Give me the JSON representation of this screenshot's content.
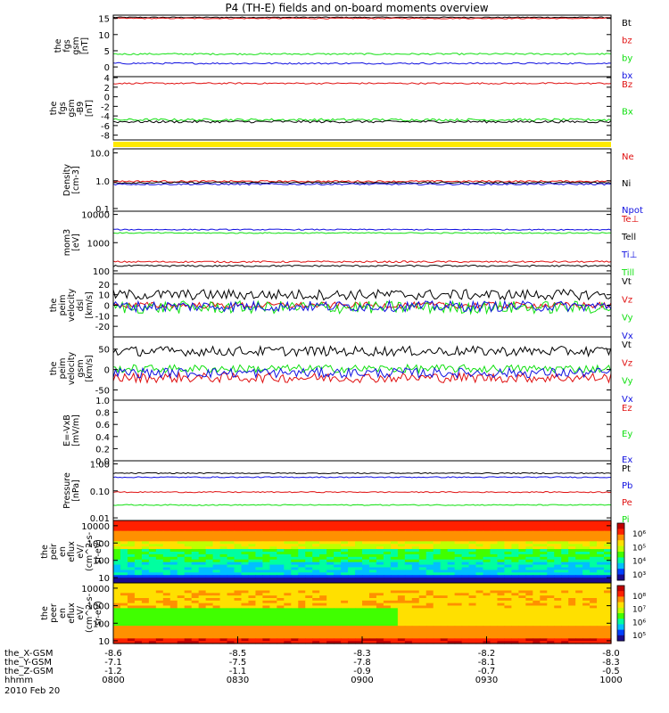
{
  "title": "P4 (TH-E) fields and on-board moments overview",
  "colors": {
    "black": "#000000",
    "red": "#e01010",
    "green": "#10e010",
    "blue": "#1010e0",
    "yellow": "#ffea00"
  },
  "chart_data": [
    {
      "type": "line",
      "ylabel": [
        "the",
        "fgs",
        "gsm",
        "[nT]"
      ],
      "yticks": [
        "15",
        "10",
        "5",
        "0"
      ],
      "ylim": [
        -3,
        16
      ],
      "log": false,
      "series": [
        {
          "name": "Bt",
          "color": "black",
          "base": 15.3,
          "noise": 0.15
        },
        {
          "name": "bz",
          "color": "red",
          "base": 15.0,
          "noise": 0.15
        },
        {
          "name": "by",
          "color": "green",
          "base": 4.0,
          "noise": 0.25
        },
        {
          "name": "bx",
          "color": "blue",
          "base": 1.1,
          "noise": 0.25
        }
      ]
    },
    {
      "type": "line",
      "ylabel": [
        "the",
        "fgs",
        "gsm",
        "-B9",
        "[nT]"
      ],
      "yticks": [
        "4",
        "2",
        "0",
        "-2",
        "-4",
        "-6",
        "-8"
      ],
      "ylim": [
        -9,
        4.2
      ],
      "log": false,
      "series": [
        {
          "name": "Bz",
          "color": "red",
          "base": 2.8,
          "noise": 0.15
        },
        {
          "name": "Bx",
          "color": "green",
          "base": -4.8,
          "noise": 0.25
        },
        {
          "name": "",
          "color": "black",
          "base": -5.2,
          "noise": 0.25
        }
      ]
    },
    {
      "type": "line",
      "ylabel": [
        "Density",
        "[cm-3]"
      ],
      "yticks": [
        "10.0",
        "1.0",
        "0.1"
      ],
      "ylim": [
        0.08,
        14
      ],
      "log": true,
      "series": [
        {
          "name": "Ne",
          "color": "red",
          "base": 0.95,
          "noise": 0.03
        },
        {
          "name": "Ni",
          "color": "black",
          "base": 0.85,
          "noise": 0.03
        },
        {
          "name": "Npot",
          "color": "blue",
          "base": 0.75,
          "noise": 0.03
        }
      ]
    },
    {
      "type": "line",
      "ylabel": [
        "mom3",
        "[eV]"
      ],
      "yticks": [
        "10000",
        "1000",
        "100"
      ],
      "ylim": [
        80,
        13000
      ],
      "log": true,
      "series": [
        {
          "name": "Te⊥",
          "color": "red",
          "base": 210,
          "noise": 0.03
        },
        {
          "name": "Tell",
          "color": "black",
          "base": 150,
          "noise": 0.03
        },
        {
          "name": "Ti⊥",
          "color": "blue",
          "base": 2900,
          "noise": 0.02
        },
        {
          "name": "Till",
          "color": "green",
          "base": 2200,
          "noise": 0.02
        }
      ]
    },
    {
      "type": "line",
      "ylabel": [
        "the",
        "peim",
        "velocity",
        "dsl",
        "[km/s]"
      ],
      "yticks": [
        "20",
        "10",
        "0",
        "-10",
        "-20"
      ],
      "ylim": [
        -30,
        30
      ],
      "log": false,
      "series": [
        {
          "name": "Vt",
          "color": "black",
          "base": 10,
          "noise": 5
        },
        {
          "name": "Vz",
          "color": "red",
          "base": 0,
          "noise": 3
        },
        {
          "name": "Vy",
          "color": "green",
          "base": -2,
          "noise": 6
        },
        {
          "name": "Vx",
          "color": "blue",
          "base": -1,
          "noise": 5
        }
      ]
    },
    {
      "type": "line",
      "ylabel": [
        "the",
        "peim",
        "velocity",
        "gsm",
        "[km/s]"
      ],
      "yticks": [
        "50",
        "0",
        "-50"
      ],
      "ylim": [
        -75,
        80
      ],
      "log": false,
      "series": [
        {
          "name": "Vt",
          "color": "black",
          "base": 45,
          "noise": 12
        },
        {
          "name": "Vz",
          "color": "red",
          "base": -20,
          "noise": 12
        },
        {
          "name": "Vy",
          "color": "green",
          "base": 2,
          "noise": 10
        },
        {
          "name": "Vx",
          "color": "blue",
          "base": -8,
          "noise": 12
        }
      ]
    },
    {
      "type": "line",
      "ylabel": [
        "E=-VxB",
        "[mV/m]"
      ],
      "yticks": [
        "1.0",
        "0.8",
        "0.6",
        "0.4",
        "0.2",
        "0.0"
      ],
      "ylim": [
        0,
        1
      ],
      "log": false,
      "series": [
        {
          "name": "Ez",
          "color": "red",
          "base": null,
          "noise": 0
        },
        {
          "name": "Ey",
          "color": "green",
          "base": null,
          "noise": 0
        },
        {
          "name": "Ex",
          "color": "blue",
          "base": null,
          "noise": 0
        }
      ]
    },
    {
      "type": "line",
      "ylabel": [
        "Pressure",
        "[nPa]"
      ],
      "yticks": [
        "1.00",
        "0.10",
        "0.01"
      ],
      "ylim": [
        0.008,
        1.3
      ],
      "log": true,
      "series": [
        {
          "name": "Pt",
          "color": "black",
          "base": 0.45,
          "noise": 0.02
        },
        {
          "name": "Pb",
          "color": "blue",
          "base": 0.32,
          "noise": 0.02
        },
        {
          "name": "Pe",
          "color": "red",
          "base": 0.09,
          "noise": 0.02
        },
        {
          "name": "Pi",
          "color": "green",
          "base": 0.03,
          "noise": 0.02
        }
      ]
    },
    {
      "type": "heatmap",
      "ylabel": [
        "the",
        "peir",
        "en",
        "eflux",
        "eV/",
        "(cm^2-s-",
        "sr-eV)"
      ],
      "yticks": [
        "10000",
        "1000",
        "100",
        "10"
      ],
      "ylim": [
        5,
        20000
      ],
      "log": true,
      "colorbar_ticks": [
        "10⁶",
        "10⁵",
        "10⁴",
        "10³"
      ]
    },
    {
      "type": "heatmap",
      "ylabel": [
        "the",
        "peer",
        "en",
        "eflux",
        "eV/",
        "(cm^2-s-",
        "sr-eV)"
      ],
      "yticks": [
        "10000",
        "1000",
        "100",
        "10"
      ],
      "ylim": [
        7,
        20000
      ],
      "log": true,
      "colorbar_ticks": [
        "10⁸",
        "10⁷",
        "10⁶",
        "10⁵"
      ]
    }
  ],
  "xaxis": {
    "ticks": [
      {
        "x": 0.0
      },
      {
        "x": 0.25
      },
      {
        "x": 0.5
      },
      {
        "x": 0.75
      },
      {
        "x": 1.0
      }
    ],
    "rows": [
      {
        "label": "the_X-GSM",
        "values": [
          "-8.6",
          "-8.5",
          "-8.3",
          "-8.2",
          "-8.0"
        ]
      },
      {
        "label": "the_Y-GSM",
        "values": [
          "-7.1",
          "-7.5",
          "-7.8",
          "-8.1",
          "-8.3"
        ]
      },
      {
        "label": "the_Z-GSM",
        "values": [
          "-1.2",
          "-1.1",
          "-0.9",
          "-0.7",
          "-0.5"
        ]
      },
      {
        "label": "hhmm",
        "values": [
          "0800",
          "0830",
          "0900",
          "0930",
          "1000"
        ]
      }
    ],
    "date": "2010 Feb 20"
  }
}
